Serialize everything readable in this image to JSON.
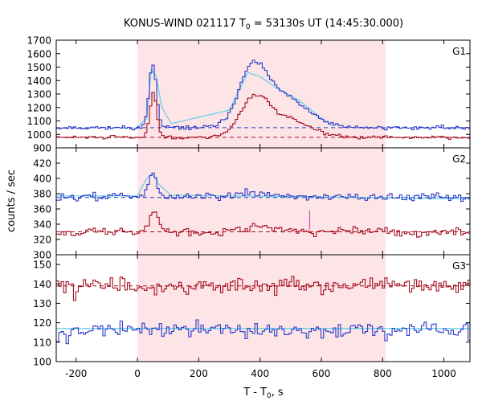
{
  "chart_data": {
    "type": "line",
    "title_main": "KONUS-WIND 021117 T",
    "title_sub": "0",
    "title_rest": " = 53130s UT (14:45:30.000)",
    "xlabel_main": "T - T",
    "xlabel_sub": "0",
    "xlabel_rest": ", s",
    "ylabel": "counts / sec",
    "xlim": [
      -265,
      1085
    ],
    "xticks": [
      -200,
      0,
      200,
      400,
      600,
      800,
      1000
    ],
    "xtick_labels": [
      "-200",
      "0",
      "200",
      "400",
      "600",
      "800",
      "1000"
    ],
    "highlight_interval": [
      0,
      810
    ],
    "colors": {
      "blue": "#2b3bc9",
      "red": "#a50f20",
      "cyan": "#5fd0e8",
      "magenta": "#d04fc4",
      "highlight": "#fde4e6"
    },
    "panels": [
      {
        "name": "G1",
        "ylim": [
          900,
          1700
        ],
        "yticks": [
          900,
          1000,
          1100,
          1200,
          1300,
          1400,
          1500,
          1600,
          1700
        ],
        "ytick_labels": [
          "900",
          "1000",
          "1100",
          "1200",
          "1300",
          "1400",
          "1500",
          "1600",
          "1700"
        ],
        "series": [
          {
            "color": "blue",
            "background": 1050,
            "baseline": 1050,
            "noise": 12,
            "bin": 8,
            "seed": 11,
            "pulses": [
              [
                50,
                12,
                470
              ],
              [
                375,
                45,
                370
              ],
              [
                470,
                80,
                230
              ]
            ]
          },
          {
            "color": "red",
            "background": 978,
            "baseline": 978,
            "noise": 10,
            "bin": 8,
            "seed": 29,
            "pulses": [
              [
                52,
                11,
                330
              ],
              [
                380,
                45,
                250
              ],
              [
                480,
                80,
                140
              ]
            ]
          }
        ],
        "fits": [
          {
            "color": "cyan",
            "x": [
              0,
              30,
              45,
              60,
              80,
              110,
              300,
              360,
              400,
              450,
              530,
              600,
              640
            ],
            "y": [
              1055,
              1120,
              1480,
              1440,
              1200,
              1080,
              1180,
              1460,
              1430,
              1350,
              1250,
              1120,
              1060
            ]
          }
        ]
      },
      {
        "name": "G2",
        "ylim": [
          300,
          440
        ],
        "yticks": [
          300,
          320,
          340,
          360,
          380,
          400,
          420
        ],
        "ytick_labels": [
          "300",
          "320",
          "340",
          "360",
          "380",
          "400",
          "420"
        ],
        "series": [
          {
            "color": "blue",
            "background": 376,
            "baseline": 375,
            "noise": 4.5,
            "bin": 8,
            "seed": 43,
            "pulses": [
              [
                50,
                14,
                30
              ],
              [
                390,
                50,
                4
              ]
            ]
          },
          {
            "color": "red",
            "background": 330,
            "baseline": 330,
            "noise": 4.5,
            "bin": 8,
            "seed": 67,
            "pulses": [
              [
                55,
                15,
                25
              ],
              [
                390,
                50,
                8
              ]
            ]
          }
        ],
        "fits": [
          {
            "color": "cyan",
            "x": [
              -265,
              0,
              30,
              50,
              70,
              110,
              300,
              560,
              1085
            ],
            "y": [
              377,
              377,
              400,
              405,
              392,
              378,
              377,
              376,
              373
            ]
          }
        ],
        "spike": {
          "color": "magenta",
          "x": 562,
          "y0": 333,
          "y1": 358
        }
      },
      {
        "name": "G3",
        "ylim": [
          100,
          155
        ],
        "yticks": [
          100,
          110,
          120,
          130,
          140,
          150
        ],
        "ytick_labels": [
          "100",
          "110",
          "120",
          "130",
          "140",
          "150"
        ],
        "series": [
          {
            "color": "red",
            "background": 139,
            "baseline": 139,
            "noise": 3.5,
            "bin": 8,
            "seed": 83,
            "pulses": []
          },
          {
            "color": "blue",
            "background": 116,
            "baseline": 117,
            "noise": 3.5,
            "bin": 8,
            "seed": 97,
            "pulses": []
          }
        ],
        "fits": [
          {
            "color": "cyan",
            "x": [
              -265,
              1085
            ],
            "y": [
              117,
              117
            ]
          }
        ]
      }
    ]
  }
}
